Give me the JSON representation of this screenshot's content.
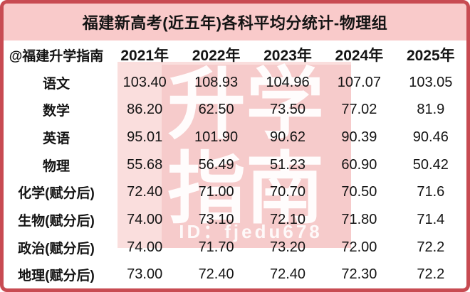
{
  "title": "福建新高考(近五年)各科平均分统计-物理组",
  "table": {
    "corner_label": "@福建升学指南",
    "year_columns": [
      "2021年",
      "2022年",
      "2023年",
      "2024年",
      "2025年"
    ],
    "rows": [
      {
        "subject": "语文",
        "values": [
          "103.40",
          "108.93",
          "104.96",
          "107.07",
          "103.05"
        ]
      },
      {
        "subject": "数学",
        "values": [
          "86.20",
          "62.50",
          "73.50",
          "77.02",
          "81.9"
        ]
      },
      {
        "subject": "英语",
        "values": [
          "95.01",
          "101.90",
          "90.62",
          "90.39",
          "90.46"
        ]
      },
      {
        "subject": "物理",
        "values": [
          "55.68",
          "56.49",
          "51.23",
          "60.90",
          "50.42"
        ]
      },
      {
        "subject": "化学(赋分后)",
        "values": [
          "72.40",
          "71.00",
          "70.70",
          "70.50",
          "71.6"
        ]
      },
      {
        "subject": "生物(赋分后)",
        "values": [
          "74.00",
          "73.10",
          "72.10",
          "71.80",
          "71.4"
        ]
      },
      {
        "subject": "政治(赋分后)",
        "values": [
          "74.00",
          "71.70",
          "73.20",
          "72.00",
          "72.2"
        ]
      },
      {
        "subject": "地理(赋分后)",
        "values": [
          "73.00",
          "72.40",
          "72.40",
          "72.30",
          "72.2"
        ]
      }
    ]
  },
  "watermark": {
    "big_text": "升学\n指南",
    "id_text": "ID：fjedu678"
  },
  "colors": {
    "frame_border": "#c84b52",
    "title_band": "#f9caca",
    "watermark_outer": "#fadedd",
    "watermark_inner": "#f6cbcb",
    "text": "#141414"
  },
  "chart_data": {
    "type": "table",
    "title": "福建新高考(近五年)各科平均分统计-物理组",
    "categories": [
      "2021年",
      "2022年",
      "2023年",
      "2024年",
      "2025年"
    ],
    "series": [
      {
        "name": "语文",
        "values": [
          103.4,
          108.93,
          104.96,
          107.07,
          103.05
        ]
      },
      {
        "name": "数学",
        "values": [
          86.2,
          62.5,
          73.5,
          77.02,
          81.9
        ]
      },
      {
        "name": "英语",
        "values": [
          95.01,
          101.9,
          90.62,
          90.39,
          90.46
        ]
      },
      {
        "name": "物理",
        "values": [
          55.68,
          56.49,
          51.23,
          60.9,
          50.42
        ]
      },
      {
        "name": "化学(赋分后)",
        "values": [
          72.4,
          71.0,
          70.7,
          70.5,
          71.6
        ]
      },
      {
        "name": "生物(赋分后)",
        "values": [
          74.0,
          73.1,
          72.1,
          71.8,
          71.4
        ]
      },
      {
        "name": "政治(赋分后)",
        "values": [
          74.0,
          71.7,
          73.2,
          72.0,
          72.2
        ]
      },
      {
        "name": "地理(赋分后)",
        "values": [
          73.0,
          72.4,
          72.4,
          72.3,
          72.2
        ]
      }
    ]
  }
}
